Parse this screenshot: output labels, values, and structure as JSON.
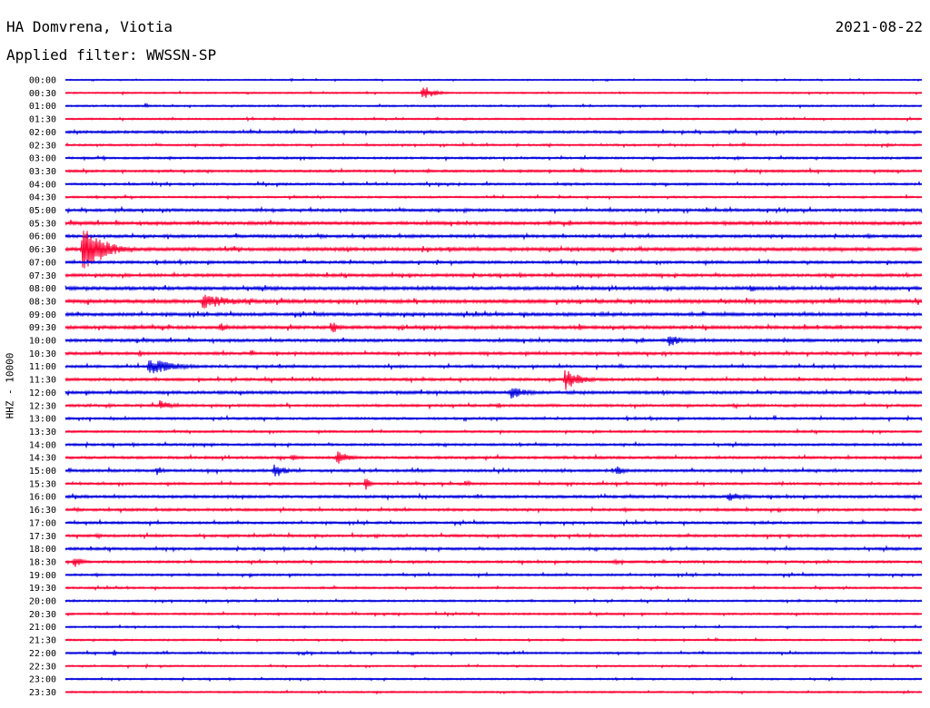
{
  "header": {
    "station": "HA Domvrena, Viotia",
    "date": "2021-08-22",
    "filter": "Applied filter: WWSSN-SP"
  },
  "chart_data": {
    "type": "line",
    "title": "HA Domvrena, Viotia",
    "ylabel": "HHZ - 10000",
    "xlabel": "",
    "grid": false,
    "colors": [
      "#0000dd",
      "#ff0033"
    ],
    "rows": [
      "00:00",
      "00:30",
      "01:00",
      "01:30",
      "02:00",
      "02:30",
      "03:00",
      "03:30",
      "04:00",
      "04:30",
      "05:00",
      "05:30",
      "06:00",
      "06:30",
      "07:00",
      "07:30",
      "08:00",
      "08:30",
      "09:00",
      "09:30",
      "10:00",
      "10:30",
      "11:00",
      "11:30",
      "12:00",
      "12:30",
      "13:00",
      "13:30",
      "14:00",
      "14:30",
      "15:00",
      "15:30",
      "16:00",
      "16:30",
      "17:00",
      "17:30",
      "18:00",
      "18:30",
      "19:00",
      "19:30",
      "20:00",
      "20:30",
      "21:00",
      "21:30",
      "22:00",
      "22:30",
      "23:00",
      "23:30"
    ],
    "minutes_per_row": 30,
    "noise": [
      0.6,
      0.7,
      0.8,
      0.8,
      1.2,
      0.9,
      1.0,
      1.1,
      1.0,
      0.9,
      1.3,
      1.5,
      1.4,
      1.6,
      1.3,
      1.4,
      1.6,
      1.7,
      1.5,
      1.5,
      1.4,
      1.3,
      1.2,
      1.3,
      1.4,
      1.2,
      1.1,
      1.0,
      1.1,
      1.2,
      1.2,
      1.1,
      1.3,
      1.2,
      1.1,
      1.2,
      1.2,
      1.1,
      1.0,
      0.9,
      0.9,
      0.9,
      0.8,
      0.8,
      0.9,
      0.8,
      0.8,
      0.8
    ],
    "events": [
      {
        "row": 1,
        "minute": 12.5,
        "amplitude": 10,
        "duration": 0.8
      },
      {
        "row": 1,
        "minute": 2.0,
        "amplitude": 2,
        "duration": 0.3
      },
      {
        "row": 2,
        "minute": 2.8,
        "amplitude": 3,
        "duration": 0.4
      },
      {
        "row": 3,
        "minute": 2.0,
        "amplitude": 2,
        "duration": 0.2
      },
      {
        "row": 5,
        "minute": 15.8,
        "amplitude": 2,
        "duration": 0.3
      },
      {
        "row": 5,
        "minute": 28.8,
        "amplitude": 3,
        "duration": 0.4
      },
      {
        "row": 11,
        "minute": 28.3,
        "amplitude": 3,
        "duration": 0.5
      },
      {
        "row": 13,
        "minute": 0.6,
        "amplitude": 30,
        "duration": 1.5
      },
      {
        "row": 16,
        "minute": 24.0,
        "amplitude": 5,
        "duration": 0.6
      },
      {
        "row": 17,
        "minute": 4.8,
        "amplitude": 9,
        "duration": 2.5
      },
      {
        "row": 19,
        "minute": 5.4,
        "amplitude": 6,
        "duration": 0.6
      },
      {
        "row": 19,
        "minute": 9.3,
        "amplitude": 8,
        "duration": 0.7
      },
      {
        "row": 19,
        "minute": 18.0,
        "amplitude": 5,
        "duration": 0.3
      },
      {
        "row": 20,
        "minute": 21.1,
        "amplitude": 8,
        "duration": 1.0
      },
      {
        "row": 21,
        "minute": 2.6,
        "amplitude": 5,
        "duration": 0.3
      },
      {
        "row": 21,
        "minute": 6.5,
        "amplitude": 6,
        "duration": 0.3
      },
      {
        "row": 22,
        "minute": 2.9,
        "amplitude": 10,
        "duration": 2.0
      },
      {
        "row": 23,
        "minute": 17.5,
        "amplitude": 13,
        "duration": 1.2
      },
      {
        "row": 24,
        "minute": 15.6,
        "amplitude": 8,
        "duration": 1.3
      },
      {
        "row": 25,
        "minute": 3.3,
        "amplitude": 6,
        "duration": 1.0
      },
      {
        "row": 25,
        "minute": 15.1,
        "amplitude": 4,
        "duration": 0.5
      },
      {
        "row": 29,
        "minute": 7.9,
        "amplitude": 4,
        "duration": 0.8
      },
      {
        "row": 29,
        "minute": 9.5,
        "amplitude": 8,
        "duration": 1.0
      },
      {
        "row": 30,
        "minute": 3.2,
        "amplitude": 6,
        "duration": 0.5
      },
      {
        "row": 30,
        "minute": 7.3,
        "amplitude": 9,
        "duration": 0.9
      },
      {
        "row": 30,
        "minute": 19.3,
        "amplitude": 6,
        "duration": 0.7
      },
      {
        "row": 31,
        "minute": 10.5,
        "amplitude": 8,
        "duration": 0.4
      },
      {
        "row": 31,
        "minute": 14.0,
        "amplitude": 4,
        "duration": 0.6
      },
      {
        "row": 32,
        "minute": 23.2,
        "amplitude": 6,
        "duration": 1.3
      },
      {
        "row": 35,
        "minute": 1.1,
        "amplitude": 4,
        "duration": 0.4
      },
      {
        "row": 37,
        "minute": 0.3,
        "amplitude": 8,
        "duration": 0.6
      },
      {
        "row": 37,
        "minute": 19.2,
        "amplitude": 3,
        "duration": 0.8
      },
      {
        "row": 44,
        "minute": 1.7,
        "amplitude": 5,
        "duration": 0.2
      }
    ]
  }
}
